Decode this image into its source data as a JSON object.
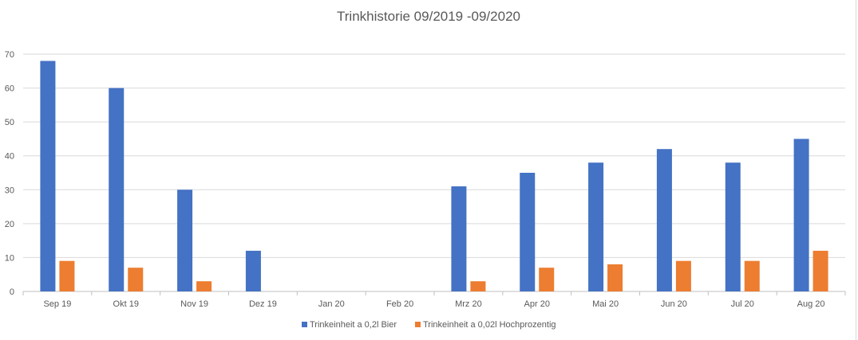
{
  "chart_data": {
    "type": "bar",
    "title": "Trinkhistorie 09/2019 -09/2020",
    "xlabel": "",
    "ylabel": "",
    "ylim": [
      0,
      70
    ],
    "yticks": [
      0,
      10,
      20,
      30,
      40,
      50,
      60,
      70
    ],
    "grid": true,
    "legend_position": "bottom",
    "categories": [
      "Sep 19",
      "Okt 19",
      "Nov 19",
      "Dez 19",
      "Jan 20",
      "Feb 20",
      "Mrz 20",
      "Apr 20",
      "Mai 20",
      "Jun 20",
      "Jul 20",
      "Aug 20"
    ],
    "series": [
      {
        "name": "Trinkeinheit a 0,2l Bier",
        "color": "#4472c4",
        "values": [
          68,
          60,
          30,
          12,
          0,
          0,
          31,
          35,
          38,
          42,
          38,
          45
        ]
      },
      {
        "name": "Trinkeinheit a 0,02l Hochprozentig",
        "color": "#ed7d31",
        "values": [
          9,
          7,
          3,
          0,
          0,
          0,
          3,
          7,
          8,
          9,
          9,
          12
        ]
      }
    ]
  }
}
